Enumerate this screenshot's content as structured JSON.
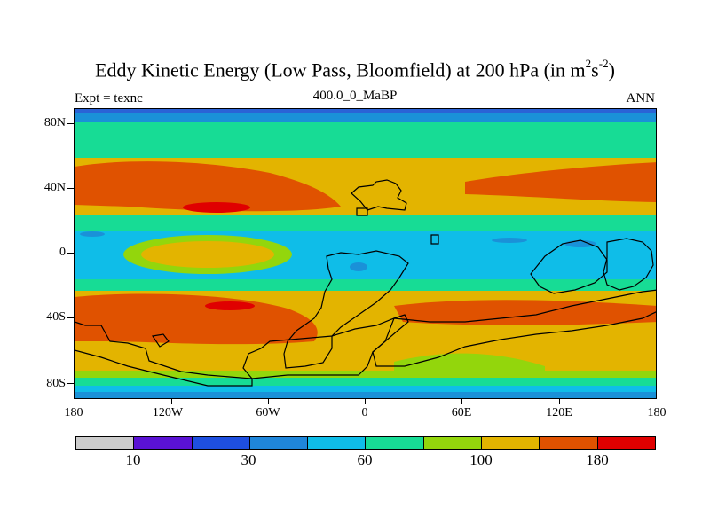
{
  "title": {
    "main": "Eddy Kinetic Energy (Low Pass, Bloomfield) at 200 hPa (in m",
    "sup1": "2",
    "mid": "s",
    "sup2": "-2",
    "end": ")"
  },
  "subtitle_left": "Expt = texnc",
  "subtitle_center": "400.0_0_MaBP",
  "subtitle_right": "ANN",
  "map": {
    "y_ticks": [
      "80N",
      "40N",
      "0",
      "40S",
      "80S"
    ],
    "x_ticks": [
      "180",
      "120W",
      "60W",
      "0",
      "60E",
      "120E",
      "180"
    ],
    "lat_range": [
      -90,
      90
    ],
    "lon_range": [
      -180,
      180
    ],
    "field_colors": {
      "c20": "#2a63d6",
      "c40": "#1a91d8",
      "c50": "#0fbde8",
      "c70": "#17dc95",
      "c90": "#93d60c",
      "c120": "#e3b400",
      "c150": "#e05200",
      "c180": "#e00000"
    }
  },
  "colorbar": {
    "colors": [
      "#cccccc",
      "#5a12d4",
      "#1e4fe0",
      "#1f86da",
      "#0fbde8",
      "#17dc95",
      "#93d60c",
      "#e3b400",
      "#e05200",
      "#e00000"
    ],
    "labels": [
      "10",
      "30",
      "60",
      "100",
      "180"
    ]
  }
}
